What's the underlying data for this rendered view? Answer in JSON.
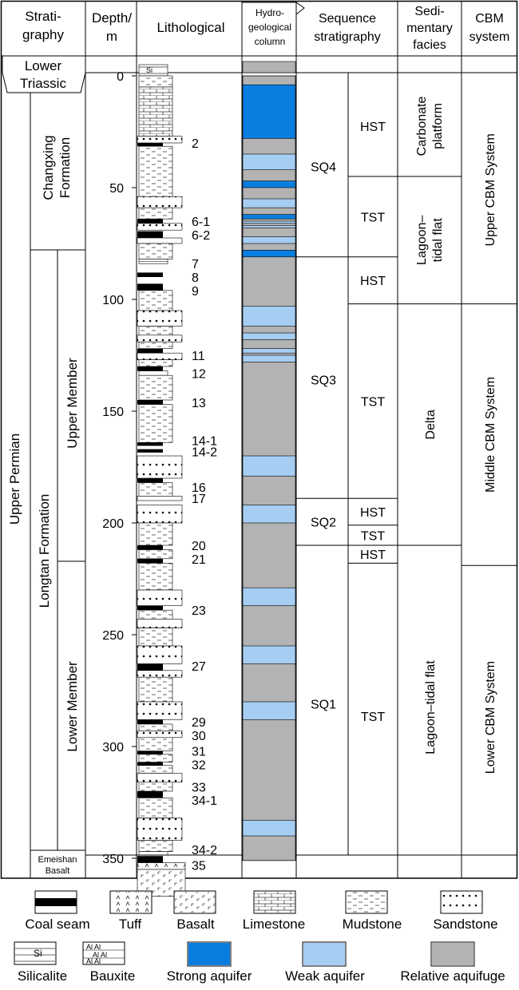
{
  "headers": {
    "stratigraphy": [
      "Strati-",
      "graphy"
    ],
    "depth": [
      "Depth/",
      "m"
    ],
    "lithological": "Lithological",
    "hydro": [
      "Hydro-",
      "geological",
      "column"
    ],
    "sequence": [
      "Sequence",
      "stratigraphy"
    ],
    "facies": [
      "Sedi-",
      "mentary",
      "facies"
    ],
    "cbm": [
      "CBM",
      "system"
    ]
  },
  "strat": {
    "lower_triassic": [
      "Lower",
      "Triassic"
    ],
    "upper_permian": "Upper Permian",
    "changxing": [
      "Changxing",
      "Formation"
    ],
    "longtan": "Longtan Formation",
    "upper_member": "Upper Member",
    "lower_member": "Lower Member",
    "emeishan": [
      "Emeishan",
      "Basalt"
    ]
  },
  "depth_ticks": [
    {
      "value": 0,
      "label": "0"
    },
    {
      "value": 50,
      "label": "50"
    },
    {
      "value": 100,
      "label": "100"
    },
    {
      "value": 150,
      "label": "150"
    },
    {
      "value": 200,
      "label": "200"
    },
    {
      "value": 250,
      "label": "250"
    },
    {
      "value": 300,
      "label": "300"
    },
    {
      "value": 350,
      "label": "350"
    }
  ],
  "coal_labels": [
    {
      "label": "2",
      "depth": 30
    },
    {
      "label": "6-1",
      "depth": 65
    },
    {
      "label": "6-2",
      "depth": 71
    },
    {
      "label": "7",
      "depth": 84
    },
    {
      "label": "8",
      "depth": 90
    },
    {
      "label": "9",
      "depth": 96
    },
    {
      "label": "11",
      "depth": 125
    },
    {
      "label": "12",
      "depth": 133
    },
    {
      "label": "13",
      "depth": 146
    },
    {
      "label": "14-1",
      "depth": 163
    },
    {
      "label": "14-2",
      "depth": 168
    },
    {
      "label": "16",
      "depth": 184
    },
    {
      "label": "17",
      "depth": 189
    },
    {
      "label": "20",
      "depth": 210
    },
    {
      "label": "21",
      "depth": 216
    },
    {
      "label": "23",
      "depth": 239
    },
    {
      "label": "27",
      "depth": 264
    },
    {
      "label": "29",
      "depth": 289
    },
    {
      "label": "30",
      "depth": 295
    },
    {
      "label": "31",
      "depth": 302
    },
    {
      "label": "32",
      "depth": 308
    },
    {
      "label": "33",
      "depth": 318
    },
    {
      "label": "34-1",
      "depth": 324
    },
    {
      "label": "34-2",
      "depth": 346
    },
    {
      "label": "35",
      "depth": 353
    }
  ],
  "sequences": [
    {
      "name": "SQ4",
      "top": 0,
      "bottom": 81
    },
    {
      "name": "SQ3",
      "top": 81,
      "bottom": 189
    },
    {
      "name": "SQ2",
      "top": 189,
      "bottom": 210
    },
    {
      "name": "SQ1",
      "top": 210,
      "bottom": 355
    }
  ],
  "systems_tracts": [
    {
      "name": "HST",
      "top": 0,
      "bottom": 45
    },
    {
      "name": "TST",
      "top": 45,
      "bottom": 81
    },
    {
      "name": "HST",
      "top": 81,
      "bottom": 102
    },
    {
      "name": "TST",
      "top": 102,
      "bottom": 189
    },
    {
      "name": "HST",
      "top": 189,
      "bottom": 201
    },
    {
      "name": "TST",
      "top": 201,
      "bottom": 210
    },
    {
      "name": "HST",
      "top": 210,
      "bottom": 218
    },
    {
      "name": "TST",
      "top": 218,
      "bottom": 355
    }
  ],
  "facies": [
    {
      "name": [
        "Carbonate",
        "platform"
      ],
      "top": 0,
      "bottom": 45
    },
    {
      "name": [
        "Lagoon–",
        "tidal flat"
      ],
      "top": 45,
      "bottom": 102
    },
    {
      "name": [
        "Delta"
      ],
      "top": 102,
      "bottom": 210
    },
    {
      "name": [
        "Lagoon–tidal flat"
      ],
      "top": 210,
      "bottom": 355
    }
  ],
  "cbm_systems": [
    {
      "name": "Upper CBM System",
      "top": 0,
      "bottom": 102
    },
    {
      "name": "Middle CBM System",
      "top": 102,
      "bottom": 219
    },
    {
      "name": "Lower CBM System",
      "top": 219,
      "bottom": 355
    }
  ],
  "hydro_layers": [
    {
      "type": "strong",
      "top": 4,
      "bottom": 28
    },
    {
      "type": "weak",
      "top": 35,
      "bottom": 42
    },
    {
      "type": "strong",
      "top": 47,
      "bottom": 50
    },
    {
      "type": "weak",
      "top": 55,
      "bottom": 59
    },
    {
      "type": "strong",
      "top": 62,
      "bottom": 64
    },
    {
      "type": "weak",
      "top": 65,
      "bottom": 66
    },
    {
      "type": "weak",
      "top": 67,
      "bottom": 68
    },
    {
      "type": "weak",
      "top": 72,
      "bottom": 75
    },
    {
      "type": "strong",
      "top": 78,
      "bottom": 81
    },
    {
      "type": "weak",
      "top": 103,
      "bottom": 112
    },
    {
      "type": "weak",
      "top": 115,
      "bottom": 118
    },
    {
      "type": "weak",
      "top": 122,
      "bottom": 124
    },
    {
      "type": "weak",
      "top": 125,
      "bottom": 128
    },
    {
      "type": "weak",
      "top": 170,
      "bottom": 179
    },
    {
      "type": "weak",
      "top": 192,
      "bottom": 200
    },
    {
      "type": "weak",
      "top": 229,
      "bottom": 237
    },
    {
      "type": "weak",
      "top": 255,
      "bottom": 263
    },
    {
      "type": "weak",
      "top": 280,
      "bottom": 288
    },
    {
      "type": "weak",
      "top": 333,
      "bottom": 340
    }
  ],
  "lithology": [
    {
      "type": "silicalite",
      "top": -5,
      "bottom": 0
    },
    {
      "type": "mudstone",
      "top": 0,
      "bottom": 5
    },
    {
      "type": "limestone",
      "top": 5,
      "bottom": 27
    },
    {
      "type": "sandstone",
      "top": 27,
      "bottom": 30
    },
    {
      "type": "coal",
      "top": 30,
      "bottom": 31.5
    },
    {
      "type": "mudstone",
      "top": 31.5,
      "bottom": 54
    },
    {
      "type": "sandstone",
      "top": 54,
      "bottom": 59
    },
    {
      "type": "mudstone",
      "top": 59,
      "bottom": 64
    },
    {
      "type": "coal",
      "top": 64,
      "bottom": 66
    },
    {
      "type": "sandstone",
      "top": 66,
      "bottom": 69
    },
    {
      "type": "coal",
      "top": 69.5,
      "bottom": 72.5
    },
    {
      "type": "sandstone",
      "top": 72.5,
      "bottom": 75
    },
    {
      "type": "mudstone",
      "top": 75,
      "bottom": 82
    },
    {
      "type": "bauxite",
      "top": 82,
      "bottom": 84
    },
    {
      "type": "coal",
      "top": 88,
      "bottom": 90
    },
    {
      "type": "coal",
      "top": 93,
      "bottom": 96
    },
    {
      "type": "mudstone",
      "top": 96,
      "bottom": 105
    },
    {
      "type": "sandstone",
      "top": 105,
      "bottom": 112
    },
    {
      "type": "mudstone",
      "top": 112,
      "bottom": 116
    },
    {
      "type": "sandstone",
      "top": 116,
      "bottom": 119
    },
    {
      "type": "mudstone",
      "top": 119,
      "bottom": 122
    },
    {
      "type": "coal",
      "top": 122,
      "bottom": 124
    },
    {
      "type": "sandstone",
      "top": 124,
      "bottom": 127
    },
    {
      "type": "mudstone",
      "top": 127,
      "bottom": 130
    },
    {
      "type": "coal",
      "top": 130,
      "bottom": 132
    },
    {
      "type": "bauxite",
      "top": 132,
      "bottom": 134
    },
    {
      "type": "mudstone",
      "top": 134,
      "bottom": 145
    },
    {
      "type": "coal",
      "top": 145,
      "bottom": 147
    },
    {
      "type": "mudstone",
      "top": 147,
      "bottom": 164
    },
    {
      "type": "coal",
      "top": 164,
      "bottom": 165.5
    },
    {
      "type": "coal",
      "top": 167,
      "bottom": 168.5
    },
    {
      "type": "sandstone",
      "top": 170,
      "bottom": 180
    },
    {
      "type": "coal",
      "top": 180,
      "bottom": 182
    },
    {
      "type": "mudstone",
      "top": 182,
      "bottom": 188
    },
    {
      "type": "sandstone",
      "top": 188,
      "bottom": 190
    },
    {
      "type": "sandstone",
      "top": 192,
      "bottom": 200
    },
    {
      "type": "mudstone",
      "top": 200,
      "bottom": 210
    },
    {
      "type": "coal",
      "top": 210,
      "bottom": 212
    },
    {
      "type": "mudstone",
      "top": 212,
      "bottom": 216
    },
    {
      "type": "coal",
      "top": 216,
      "bottom": 218
    },
    {
      "type": "mudstone",
      "top": 218,
      "bottom": 230
    },
    {
      "type": "sandstone",
      "top": 230,
      "bottom": 237
    },
    {
      "type": "coal",
      "top": 237,
      "bottom": 239
    },
    {
      "type": "mudstone",
      "top": 239,
      "bottom": 243
    },
    {
      "type": "sandstone",
      "top": 243,
      "bottom": 247
    },
    {
      "type": "mudstone",
      "top": 247,
      "bottom": 255
    },
    {
      "type": "sandstone",
      "top": 255,
      "bottom": 263
    },
    {
      "type": "coal",
      "top": 263,
      "bottom": 266
    },
    {
      "type": "sandstone",
      "top": 266,
      "bottom": 269
    },
    {
      "type": "mudstone",
      "top": 269,
      "bottom": 280
    },
    {
      "type": "sandstone",
      "top": 280,
      "bottom": 288
    },
    {
      "type": "coal",
      "top": 288,
      "bottom": 290
    },
    {
      "type": "mudstone",
      "top": 290,
      "bottom": 293
    },
    {
      "type": "sandstone",
      "top": 293,
      "bottom": 296
    },
    {
      "type": "mudstone",
      "top": 296,
      "bottom": 302
    },
    {
      "type": "coal",
      "top": 302,
      "bottom": 303.5
    },
    {
      "type": "mudstone",
      "top": 303.5,
      "bottom": 307
    },
    {
      "type": "coal",
      "top": 307,
      "bottom": 308.5
    },
    {
      "type": "mudstone",
      "top": 308.5,
      "bottom": 312
    },
    {
      "type": "sandstone",
      "top": 312,
      "bottom": 316
    },
    {
      "type": "mudstone",
      "top": 316,
      "bottom": 320
    },
    {
      "type": "coal",
      "top": 320,
      "bottom": 323
    },
    {
      "type": "mudstone",
      "top": 323,
      "bottom": 332
    },
    {
      "type": "sandstone",
      "top": 332,
      "bottom": 342
    },
    {
      "type": "mudstone",
      "top": 342,
      "bottom": 347
    },
    {
      "type": "bauxite",
      "top": 347,
      "bottom": 348.5
    },
    {
      "type": "coal",
      "top": 349,
      "bottom": 352
    },
    {
      "type": "tuff",
      "top": 352,
      "bottom": 355
    },
    {
      "type": "basalt",
      "top": 355,
      "bottom": 367
    }
  ],
  "legend": [
    {
      "type": "coal",
      "label": "Coal seam"
    },
    {
      "type": "tuff",
      "label": "Tuff"
    },
    {
      "type": "basalt",
      "label": "Basalt"
    },
    {
      "type": "limestone",
      "label": "Limestone"
    },
    {
      "type": "mudstone",
      "label": "Mudstone"
    },
    {
      "type": "sandstone",
      "label": "Sandstone"
    },
    {
      "type": "silicalite",
      "label": "Silicalite"
    },
    {
      "type": "bauxite",
      "label": "Bauxite"
    },
    {
      "type": "strong",
      "label": "Strong aquifer"
    },
    {
      "type": "weak",
      "label": "Weak aquifer"
    },
    {
      "type": "aquifuge",
      "label": "Relative aquifuge"
    }
  ],
  "colors": {
    "strong_aquifer": "#0a7ee0",
    "weak_aquifer": "#a6cdf2",
    "aquifuge": "#b3b3b3",
    "coal": "#000000",
    "line": "#000000"
  }
}
